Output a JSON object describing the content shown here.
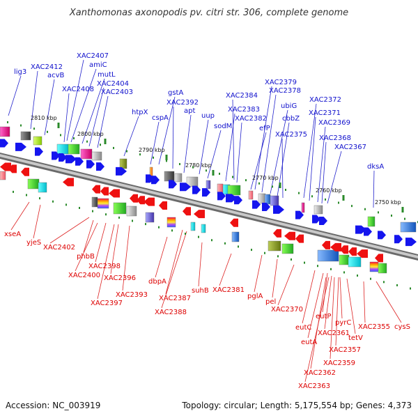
{
  "title": "Xanthomonas axonopodis pv. citri str. 306, complete genome",
  "footer": {
    "accession": "Accession: NC_003919",
    "summary": "Topology: circular; Length: 5,175,554 bp; Genes: 4,373"
  },
  "colors": {
    "forward_label": "#1010cc",
    "reverse_label": "#dd0000",
    "forward_arrow": "#1515ee",
    "reverse_arrow": "#ee1111",
    "backbone": "#8a8a8a",
    "tick": "#2a8a2a"
  },
  "ticks": [
    "2810 kbp",
    "2800 kbp",
    "2790 kbp",
    "2780 kbp",
    "2770 kbp",
    "2760 kbp",
    "2750 kbp"
  ],
  "forward_labels": [
    "lig3",
    "XAC2412",
    "acvB",
    "XAC2407",
    "amiC",
    "mutL",
    "XAC2408",
    "XAC2404",
    "XAC2403",
    "htpX",
    "gstA",
    "cspA",
    "XAC2392",
    "apt",
    "uup",
    "XAC2384",
    "sodM",
    "XAC2383",
    "XAC2382",
    "XAC2379",
    "XAC2378",
    "ubiG",
    "efP",
    "cbbZ",
    "XAC2375",
    "XAC2372",
    "XAC2371",
    "XAC2369",
    "XAC2368",
    "XAC2367",
    "dksA"
  ],
  "reverse_labels": [
    "xseA",
    "yjeS",
    "XAC2402",
    "phbB",
    "XAC2398",
    "XAC2400",
    "XAC2396",
    "XAC2397",
    "XAC2393",
    "dbpA",
    "XAC2387",
    "XAC2388",
    "suhB",
    "XAC2381",
    "pglA",
    "pel",
    "XAC2370",
    "eutC",
    "eutP",
    "eutA",
    "XAC2361",
    "pyrC",
    "tetV",
    "XAC2355",
    "cysS",
    "XAC2357",
    "XAC2359",
    "XAC2362",
    "XAC2363"
  ]
}
